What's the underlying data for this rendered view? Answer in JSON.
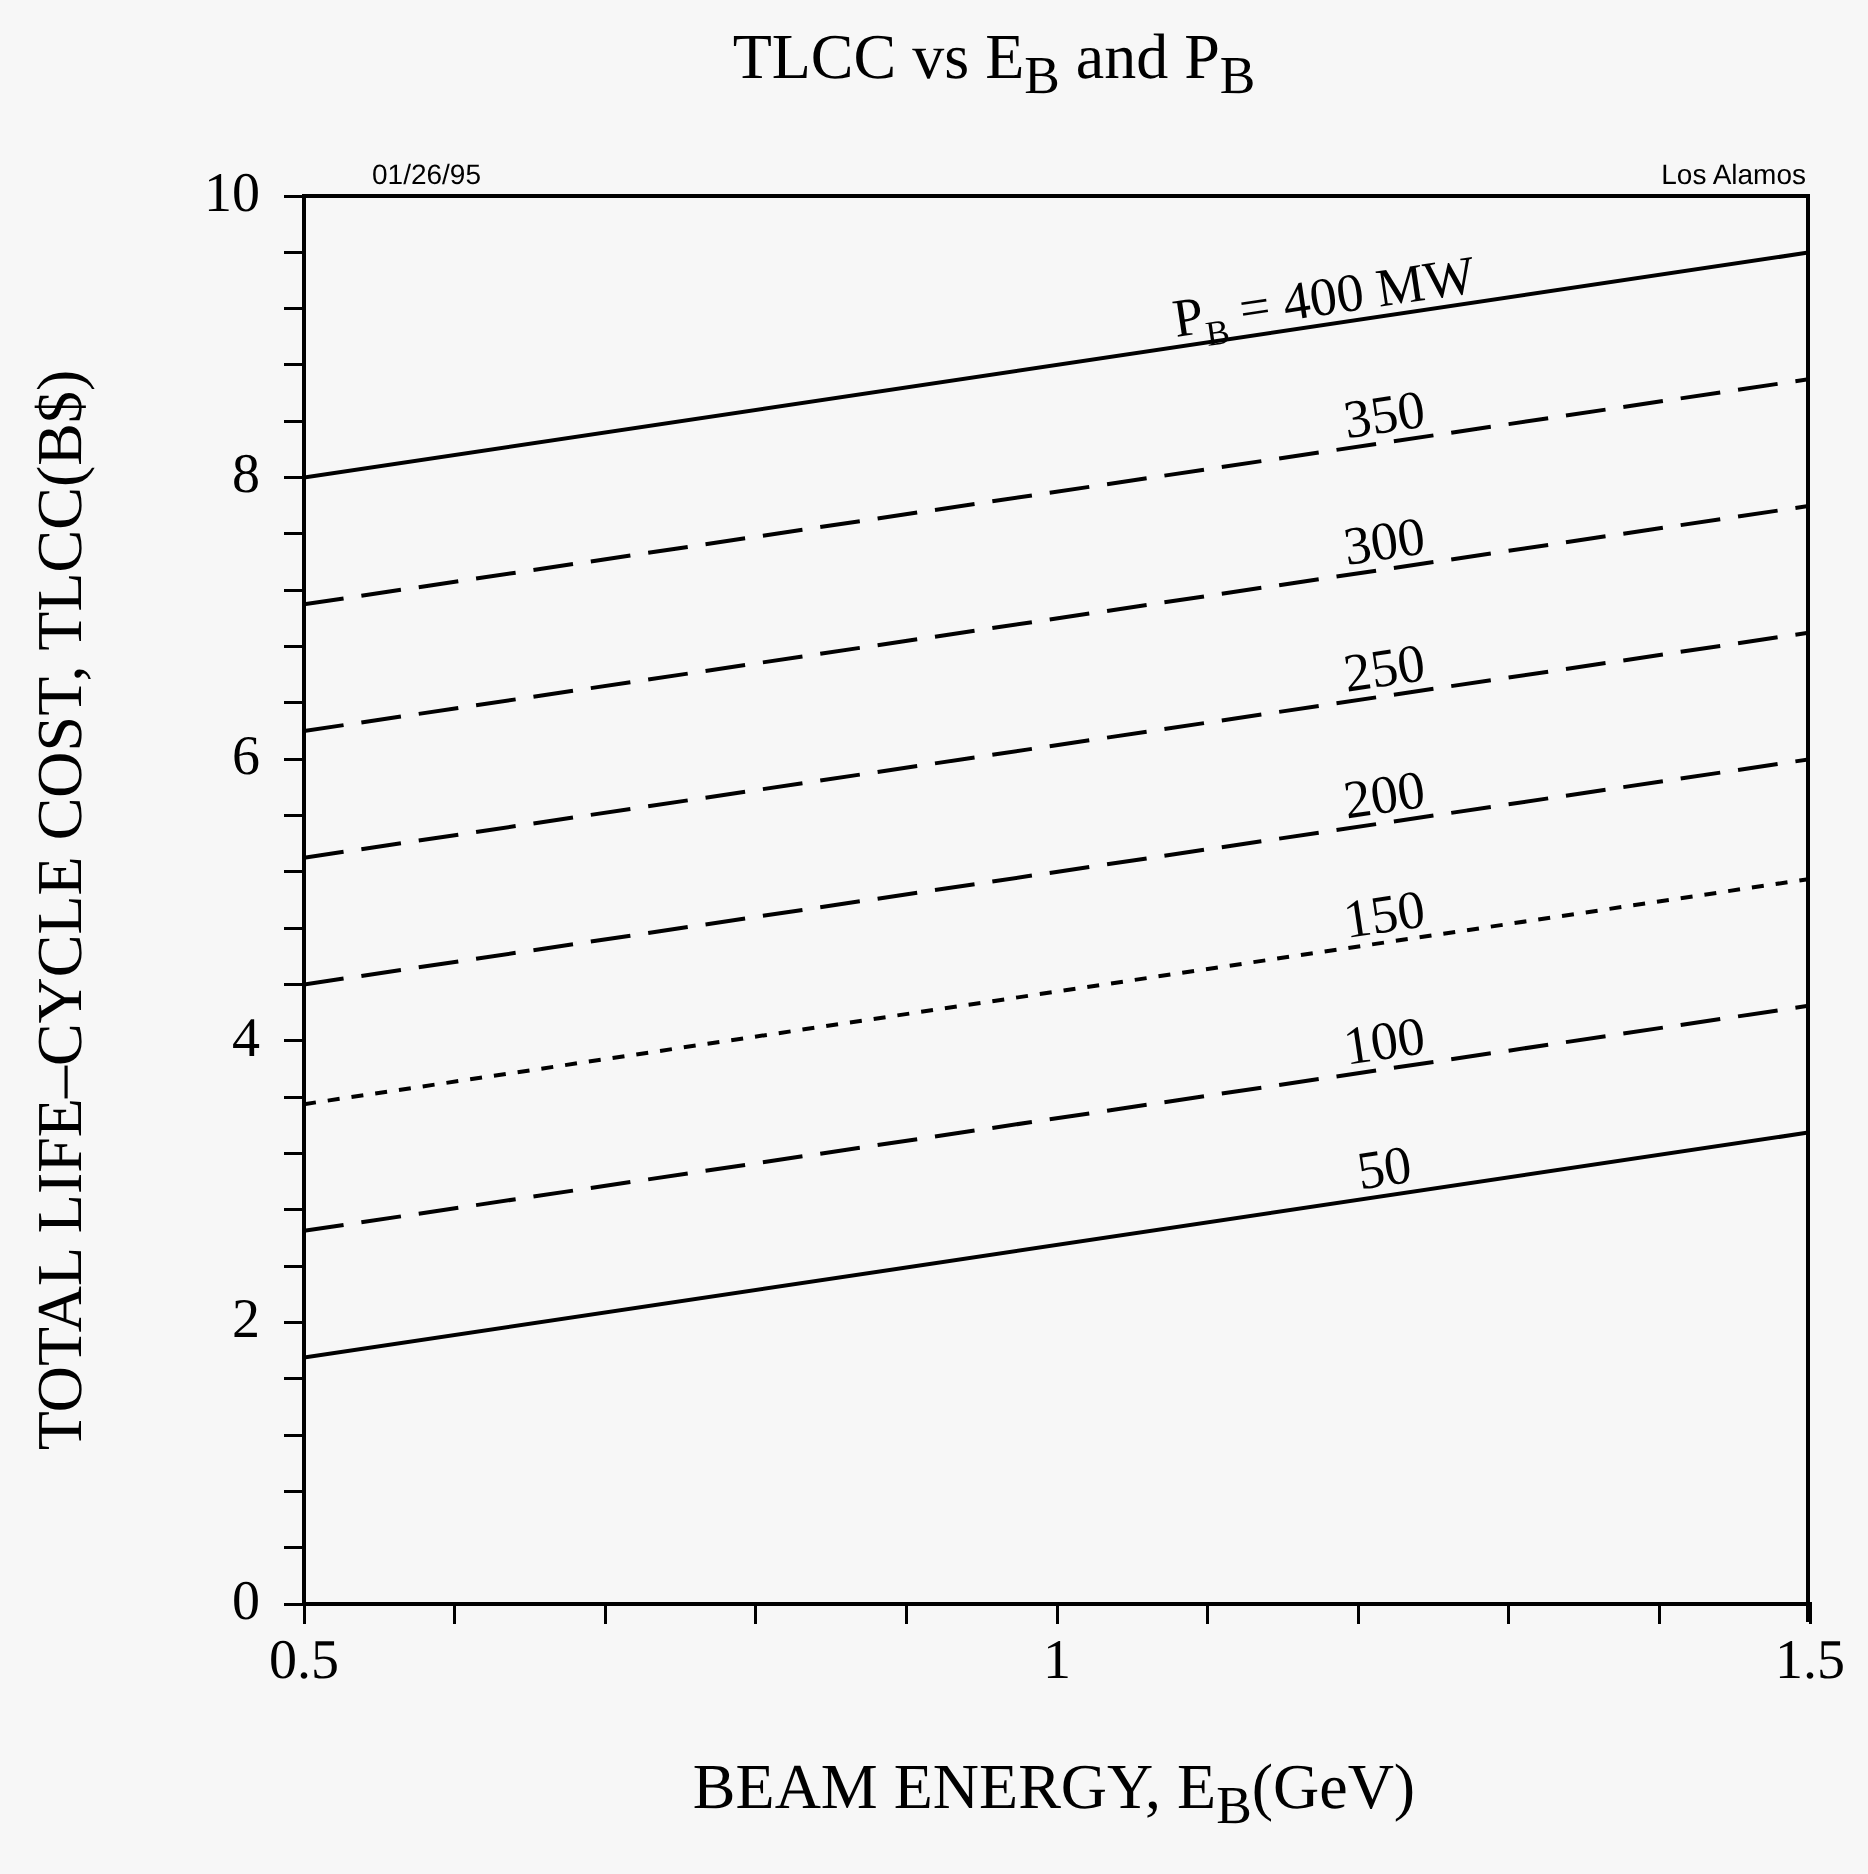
{
  "chart_data": {
    "type": "line",
    "title": "TLCC vs E$_{B}$ and P$_{B}$",
    "xlabel": "BEAM ENERGY, E$_{B}$(GeV)",
    "ylabel": "TOTAL LIFE–CYCLE COST, TLCC(B$)",
    "annotations": [
      "01/26/95",
      "Los Alamos"
    ],
    "x": [
      0.5,
      1.5
    ],
    "series": [
      {
        "name": "P$_{B}$ = 400 MW",
        "color": "#000000",
        "line_style": "solid",
        "values": [
          8.0,
          9.6
        ]
      },
      {
        "name": "350",
        "color": "#000000",
        "line_style": "dashed",
        "values": [
          7.1,
          8.7
        ]
      },
      {
        "name": "300",
        "color": "#000000",
        "line_style": "dashed",
        "values": [
          6.2,
          7.8
        ]
      },
      {
        "name": "250",
        "color": "#000000",
        "line_style": "dashed",
        "values": [
          5.3,
          6.9
        ]
      },
      {
        "name": "200",
        "color": "#000000",
        "line_style": "dashed",
        "values": [
          4.4,
          6.0
        ]
      },
      {
        "name": "150",
        "color": "#000000",
        "line_style": "dotted",
        "values": [
          3.55,
          5.15
        ]
      },
      {
        "name": "100",
        "color": "#000000",
        "line_style": "dashed",
        "values": [
          2.65,
          4.25
        ]
      },
      {
        "name": "50",
        "color": "#000000",
        "line_style": "solid",
        "values": [
          1.75,
          3.35
        ]
      }
    ],
    "xlim": [
      0.5,
      1.5
    ],
    "xticks": [
      0.5,
      {
        "value": 0.6,
        "label": null
      },
      {
        "value": 0.7,
        "label": null
      },
      {
        "value": 0.8,
        "label": null
      },
      {
        "value": 0.9,
        "label": null
      },
      1,
      {
        "value": 1.1,
        "label": null
      },
      {
        "value": 1.2,
        "label": null
      },
      {
        "value": 1.3,
        "label": null
      },
      {
        "value": 1.4,
        "label": null
      },
      1.5
    ],
    "ylim": [
      0,
      10
    ],
    "yticks": [
      0,
      {
        "value": 0.4,
        "label": null
      },
      {
        "value": 0.8,
        "label": null
      },
      {
        "value": 1.2,
        "label": null
      },
      {
        "value": 1.6,
        "label": null
      },
      2,
      {
        "value": 2.4,
        "label": null
      },
      {
        "value": 2.8,
        "label": null
      },
      {
        "value": 3.2,
        "label": null
      },
      {
        "value": 3.6,
        "label": null
      },
      4,
      {
        "value": 4.4,
        "label": null
      },
      {
        "value": 4.8,
        "label": null
      },
      {
        "value": 5.2,
        "label": null
      },
      {
        "value": 5.6,
        "label": null
      },
      6,
      {
        "value": 6.4,
        "label": null
      },
      {
        "value": 6.8,
        "label": null
      },
      {
        "value": 7.2,
        "label": null
      },
      {
        "value": 7.6,
        "label": null
      },
      8,
      {
        "value": 8.4,
        "label": null
      },
      {
        "value": 8.8,
        "label": null
      },
      {
        "value": 9.2,
        "label": null
      },
      {
        "value": 9.6,
        "label": null
      },
      10
    ],
    "grid": false,
    "legend": false,
    "marker": "none"
  }
}
